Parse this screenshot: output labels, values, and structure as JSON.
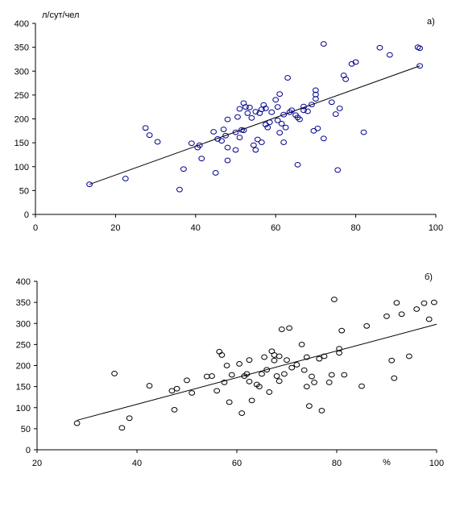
{
  "chart_data": [
    {
      "type": "scatter",
      "panel_label": "а)",
      "ylabel": "л/сут/чел",
      "xlabel": "",
      "xlim": [
        0,
        100
      ],
      "ylim": [
        0,
        400
      ],
      "x_ticks": [
        0,
        20,
        40,
        60,
        80,
        100
      ],
      "y_ticks": [
        0,
        50,
        100,
        150,
        200,
        250,
        300,
        350,
        400
      ],
      "grid": false,
      "marker_color": "#00008b",
      "line_color": "#000000",
      "trendline": {
        "x": [
          13.5,
          96
        ],
        "y": [
          63,
          311
        ]
      },
      "points": [
        [
          13.5,
          63
        ],
        [
          22.5,
          75
        ],
        [
          27.5,
          181
        ],
        [
          28.5,
          166
        ],
        [
          30.5,
          152
        ],
        [
          36,
          52
        ],
        [
          37,
          95
        ],
        [
          39,
          149
        ],
        [
          40.5,
          140
        ],
        [
          41,
          145
        ],
        [
          41.5,
          117
        ],
        [
          44.5,
          173
        ],
        [
          45,
          87
        ],
        [
          45.5,
          158
        ],
        [
          46.5,
          154
        ],
        [
          47,
          178
        ],
        [
          47.5,
          165
        ],
        [
          48,
          140
        ],
        [
          48,
          113
        ],
        [
          48,
          199
        ],
        [
          50,
          135
        ],
        [
          50,
          172
        ],
        [
          50.5,
          204
        ],
        [
          51,
          161
        ],
        [
          51,
          221
        ],
        [
          51.5,
          177
        ],
        [
          52,
          176
        ],
        [
          52,
          233
        ],
        [
          52.5,
          225
        ],
        [
          53,
          212
        ],
        [
          53.5,
          224
        ],
        [
          54,
          202
        ],
        [
          54.5,
          145
        ],
        [
          55,
          135
        ],
        [
          55,
          215
        ],
        [
          55.5,
          157
        ],
        [
          56,
          212
        ],
        [
          56.5,
          220
        ],
        [
          56.5,
          151
        ],
        [
          57,
          229
        ],
        [
          57.5,
          222
        ],
        [
          57.5,
          188
        ],
        [
          58,
          182
        ],
        [
          58.5,
          193
        ],
        [
          59,
          214
        ],
        [
          60,
          240
        ],
        [
          60.5,
          225
        ],
        [
          60.5,
          197
        ],
        [
          61,
          171
        ],
        [
          61,
          252
        ],
        [
          61.5,
          190
        ],
        [
          62,
          151
        ],
        [
          62,
          209
        ],
        [
          62.5,
          182
        ],
        [
          63,
          286
        ],
        [
          63.5,
          214
        ],
        [
          64,
          218
        ],
        [
          65,
          208
        ],
        [
          65.5,
          203
        ],
        [
          65.5,
          104
        ],
        [
          66,
          199
        ],
        [
          67,
          218
        ],
        [
          67,
          226
        ],
        [
          68,
          216
        ],
        [
          69,
          230
        ],
        [
          69.5,
          175
        ],
        [
          70,
          251
        ],
        [
          70,
          242
        ],
        [
          70,
          260
        ],
        [
          70.5,
          180
        ],
        [
          72,
          159
        ],
        [
          72,
          357
        ],
        [
          74,
          235
        ],
        [
          75,
          210
        ],
        [
          75.5,
          93
        ],
        [
          76,
          222
        ],
        [
          77,
          291
        ],
        [
          77.5,
          283
        ],
        [
          79,
          315
        ],
        [
          80,
          319
        ],
        [
          82,
          172
        ],
        [
          86,
          349
        ],
        [
          88.5,
          334
        ],
        [
          95.5,
          350
        ],
        [
          96,
          348
        ],
        [
          96,
          311
        ]
      ]
    },
    {
      "type": "scatter",
      "panel_label": "б)",
      "ylabel": "",
      "xlabel": "%",
      "xlim": [
        20,
        100
      ],
      "ylim": [
        0,
        400
      ],
      "x_ticks": [
        20,
        40,
        60,
        80,
        100
      ],
      "y_ticks": [
        0,
        50,
        100,
        150,
        200,
        250,
        300,
        350,
        400
      ],
      "grid": false,
      "marker_color": "#000000",
      "line_color": "#000000",
      "trendline": {
        "x": [
          28,
          100
        ],
        "y": [
          70,
          298
        ]
      },
      "points": [
        [
          28,
          63
        ],
        [
          35.5,
          181
        ],
        [
          37,
          52
        ],
        [
          38.5,
          75
        ],
        [
          42.5,
          152
        ],
        [
          47,
          140
        ],
        [
          47.5,
          95
        ],
        [
          48,
          145
        ],
        [
          50,
          165
        ],
        [
          51,
          135
        ],
        [
          54,
          174
        ],
        [
          55,
          175
        ],
        [
          56,
          140
        ],
        [
          56.5,
          233
        ],
        [
          57,
          225
        ],
        [
          57.5,
          160
        ],
        [
          58,
          200
        ],
        [
          58.5,
          113
        ],
        [
          59,
          178
        ],
        [
          60.5,
          204
        ],
        [
          61,
          87
        ],
        [
          61.5,
          175
        ],
        [
          62,
          180
        ],
        [
          62.5,
          213
        ],
        [
          62.5,
          162
        ],
        [
          63,
          117
        ],
        [
          64,
          155
        ],
        [
          64.5,
          150
        ],
        [
          65,
          180
        ],
        [
          65.5,
          220
        ],
        [
          66,
          190
        ],
        [
          66.5,
          137
        ],
        [
          67,
          234
        ],
        [
          67.5,
          225
        ],
        [
          67.5,
          212
        ],
        [
          68,
          175
        ],
        [
          68.5,
          222
        ],
        [
          68.5,
          163
        ],
        [
          69,
          286
        ],
        [
          69.5,
          180
        ],
        [
          70,
          213
        ],
        [
          70.5,
          289
        ],
        [
          71,
          195
        ],
        [
          72,
          202
        ],
        [
          73,
          250
        ],
        [
          73.5,
          189
        ],
        [
          74,
          220
        ],
        [
          74,
          150
        ],
        [
          74.5,
          104
        ],
        [
          75,
          174
        ],
        [
          75.5,
          160
        ],
        [
          76.5,
          216
        ],
        [
          77,
          93
        ],
        [
          77.5,
          222
        ],
        [
          78.5,
          160
        ],
        [
          79,
          178
        ],
        [
          79.5,
          357
        ],
        [
          80.5,
          230
        ],
        [
          80.5,
          240
        ],
        [
          81,
          283
        ],
        [
          81.5,
          178
        ],
        [
          85,
          151
        ],
        [
          86,
          294
        ],
        [
          90,
          317
        ],
        [
          91,
          212
        ],
        [
          91.5,
          170
        ],
        [
          92,
          349
        ],
        [
          93,
          322
        ],
        [
          94.5,
          222
        ],
        [
          96,
          334
        ],
        [
          97.5,
          348
        ],
        [
          98.5,
          310
        ],
        [
          99.5,
          350
        ]
      ]
    }
  ]
}
